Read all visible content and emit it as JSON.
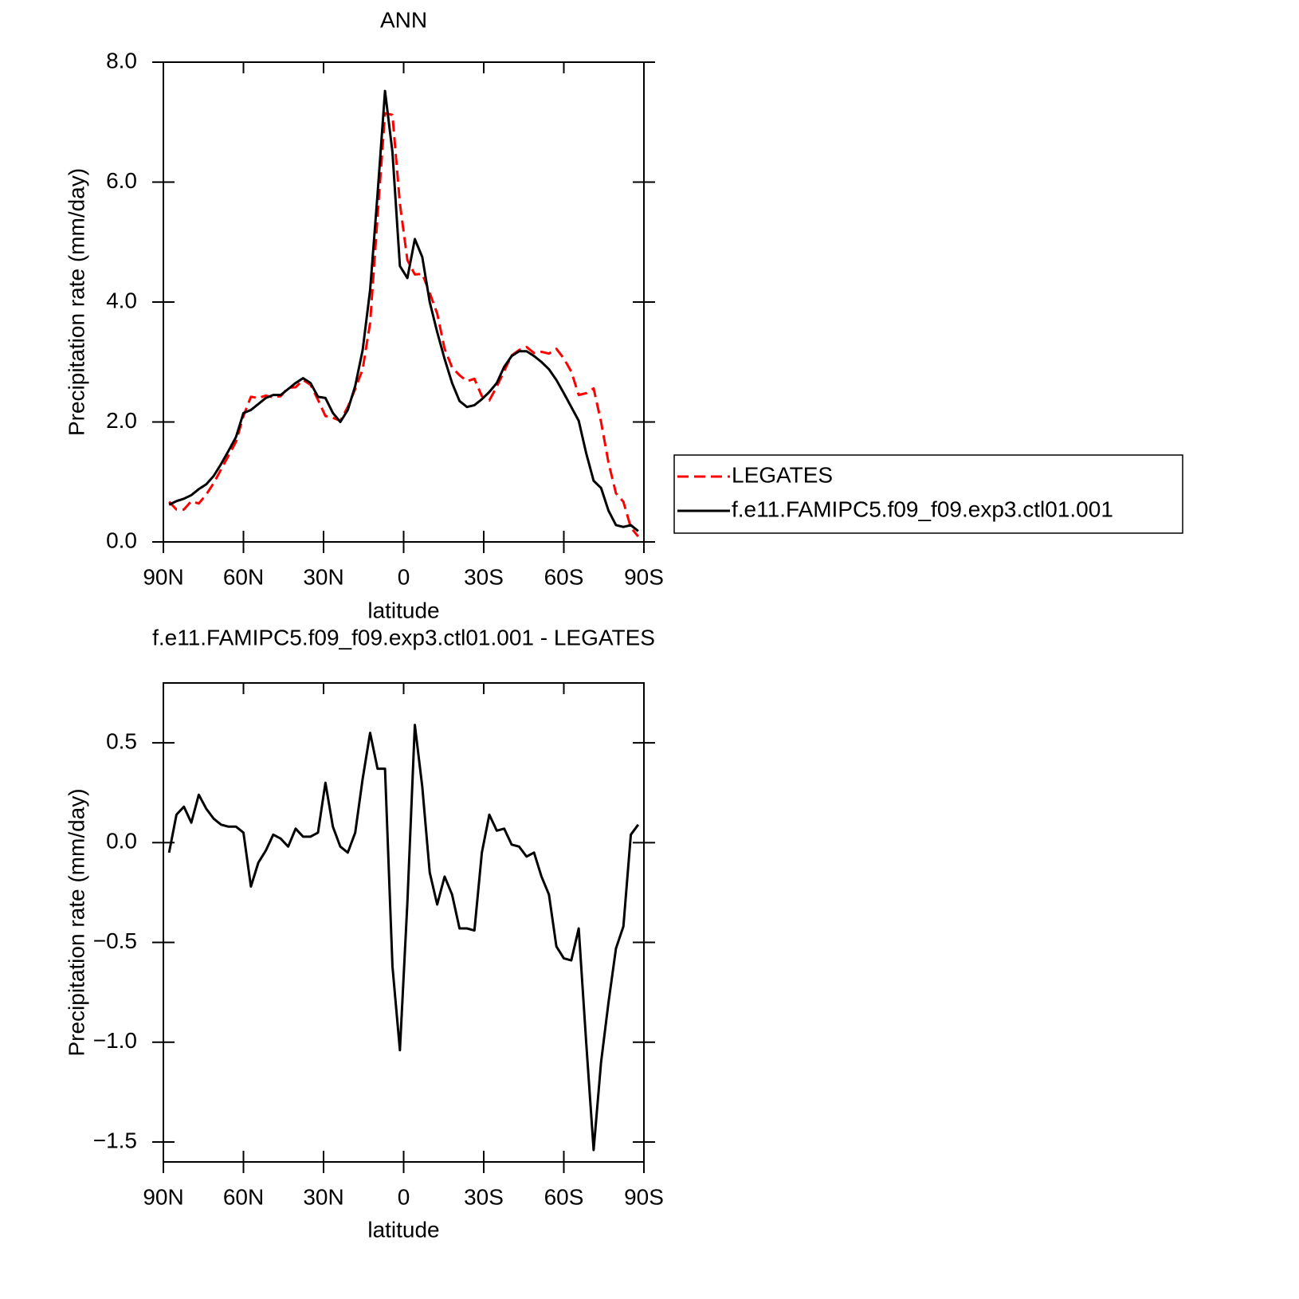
{
  "chart_data": [
    {
      "type": "line",
      "title": "ANN",
      "ylabel": "Precipitation rate (mm/day)",
      "xlabel": "latitude",
      "x": [
        87.86,
        85.1,
        82.31,
        79.53,
        76.74,
        73.95,
        71.16,
        68.37,
        65.58,
        62.79,
        60.0,
        57.21,
        54.42,
        51.63,
        48.84,
        46.05,
        43.25,
        40.46,
        37.67,
        34.88,
        32.09,
        29.3,
        26.51,
        23.72,
        20.93,
        18.14,
        15.35,
        12.56,
        9.77,
        6.98,
        4.19,
        1.4,
        -1.4,
        -4.19,
        -6.98,
        -9.77,
        -12.56,
        -15.35,
        -18.14,
        -20.93,
        -23.72,
        -26.51,
        -29.3,
        -32.09,
        -34.88,
        -37.67,
        -40.46,
        -43.25,
        -46.05,
        -48.84,
        -51.63,
        -54.42,
        -57.21,
        -60.0,
        -62.79,
        -65.58,
        -68.37,
        -71.16,
        -73.95,
        -76.74,
        -79.53,
        -82.31,
        -85.1,
        -87.86
      ],
      "series": [
        {
          "name": "LEGATES",
          "color": "#ff0000",
          "line_style": "dashed",
          "values": [
            0.67,
            0.54,
            0.54,
            0.68,
            0.64,
            0.79,
            0.98,
            1.21,
            1.44,
            1.67,
            2.1,
            2.42,
            2.4,
            2.44,
            2.41,
            2.43,
            2.57,
            2.58,
            2.7,
            2.62,
            2.37,
            2.1,
            2.07,
            2.02,
            2.25,
            2.55,
            2.88,
            3.65,
            5.43,
            7.15,
            7.12,
            5.64,
            4.7,
            4.46,
            4.47,
            4.15,
            3.81,
            3.22,
            2.91,
            2.78,
            2.68,
            2.72,
            2.43,
            2.36,
            2.59,
            2.85,
            3.11,
            3.2,
            3.25,
            3.15,
            3.17,
            3.14,
            3.22,
            3.06,
            2.84,
            2.45,
            2.48,
            2.56,
            2.0,
            1.32,
            0.81,
            0.67,
            0.24,
            0.09
          ]
        },
        {
          "name": "f.e11.FAMIPC5.f09_f09.exp3.ctl01.001",
          "color": "#000000",
          "line_style": "solid",
          "values": [
            0.62,
            0.68,
            0.72,
            0.78,
            0.88,
            0.96,
            1.1,
            1.3,
            1.52,
            1.75,
            2.15,
            2.2,
            2.3,
            2.4,
            2.45,
            2.45,
            2.55,
            2.65,
            2.73,
            2.65,
            2.42,
            2.4,
            2.15,
            2.0,
            2.2,
            2.6,
            3.2,
            4.2,
            5.8,
            7.52,
            6.5,
            4.6,
            4.4,
            5.05,
            4.75,
            4.0,
            3.5,
            3.05,
            2.65,
            2.35,
            2.25,
            2.28,
            2.38,
            2.5,
            2.65,
            2.92,
            3.1,
            3.18,
            3.18,
            3.1,
            3.0,
            2.88,
            2.7,
            2.48,
            2.25,
            2.02,
            1.48,
            1.02,
            0.9,
            0.52,
            0.28,
            0.25,
            0.28,
            0.18
          ]
        }
      ],
      "xlim": [
        90,
        -90
      ],
      "xticks": [
        {
          "value": 90,
          "label": "90N"
        },
        {
          "value": 60,
          "label": "60N"
        },
        {
          "value": 30,
          "label": "30N"
        },
        0,
        {
          "value": -30,
          "label": "30S"
        },
        {
          "value": -60,
          "label": "60S"
        },
        {
          "value": -90,
          "label": "90S"
        }
      ],
      "ylim": [
        0,
        8
      ],
      "yticks": [
        {
          "value": 0,
          "label": "0.0"
        },
        {
          "value": 2,
          "label": "2.0"
        },
        {
          "value": 4,
          "label": "4.0"
        },
        {
          "value": 6,
          "label": "6.0"
        },
        {
          "value": 8,
          "label": "8.0"
        }
      ],
      "legend": "right"
    },
    {
      "type": "line",
      "title": "f.e11.FAMIPC5.f09_f09.exp3.ctl01.001 - LEGATES",
      "ylabel": "Precipitation rate (mm/day)",
      "xlabel": "latitude",
      "x": [
        87.86,
        85.1,
        82.31,
        79.53,
        76.74,
        73.95,
        71.16,
        68.37,
        65.58,
        62.79,
        60.0,
        57.21,
        54.42,
        51.63,
        48.84,
        46.05,
        43.25,
        40.46,
        37.67,
        34.88,
        32.09,
        29.3,
        26.51,
        23.72,
        20.93,
        18.14,
        15.35,
        12.56,
        9.77,
        6.98,
        4.19,
        1.4,
        -1.4,
        -4.19,
        -6.98,
        -9.77,
        -12.56,
        -15.35,
        -18.14,
        -20.93,
        -23.72,
        -26.51,
        -29.3,
        -32.09,
        -34.88,
        -37.67,
        -40.46,
        -43.25,
        -46.05,
        -48.84,
        -51.63,
        -54.42,
        -57.21,
        -60.0,
        -62.79,
        -65.58,
        -68.37,
        -71.16,
        -73.95,
        -76.74,
        -79.53,
        -82.31,
        -85.1,
        -87.86
      ],
      "series": [
        {
          "color": "#000000",
          "line_style": "solid",
          "values": [
            -0.05,
            0.14,
            0.18,
            0.1,
            0.24,
            0.17,
            0.12,
            0.09,
            0.08,
            0.08,
            0.05,
            -0.22,
            -0.1,
            -0.04,
            0.04,
            0.02,
            -0.02,
            0.07,
            0.03,
            0.03,
            0.05,
            0.3,
            0.08,
            -0.02,
            -0.05,
            0.05,
            0.32,
            0.55,
            0.37,
            0.37,
            -0.62,
            -1.04,
            -0.3,
            0.59,
            0.28,
            -0.15,
            -0.31,
            -0.17,
            -0.26,
            -0.43,
            -0.43,
            -0.44,
            -0.05,
            0.14,
            0.06,
            0.07,
            -0.01,
            -0.02,
            -0.07,
            -0.05,
            -0.17,
            -0.26,
            -0.52,
            -0.58,
            -0.59,
            -0.43,
            -1.0,
            -1.54,
            -1.1,
            -0.8,
            -0.53,
            -0.42,
            0.04,
            0.09
          ]
        }
      ],
      "xlim": [
        90,
        -90
      ],
      "xticks": [
        {
          "value": 90,
          "label": "90N"
        },
        {
          "value": 60,
          "label": "60N"
        },
        {
          "value": 30,
          "label": "30N"
        },
        0,
        {
          "value": -30,
          "label": "30S"
        },
        {
          "value": -60,
          "label": "60S"
        },
        {
          "value": -90,
          "label": "90S"
        }
      ],
      "ylim": [
        -1.6,
        0.8
      ],
      "yticks": [
        0.5,
        {
          "value": 0,
          "label": "0.0"
        },
        {
          "value": -0.5,
          "label": "−0.5"
        },
        {
          "value": -1,
          "label": "−1.0"
        },
        {
          "value": -1.5,
          "label": "−1.5"
        }
      ]
    }
  ]
}
